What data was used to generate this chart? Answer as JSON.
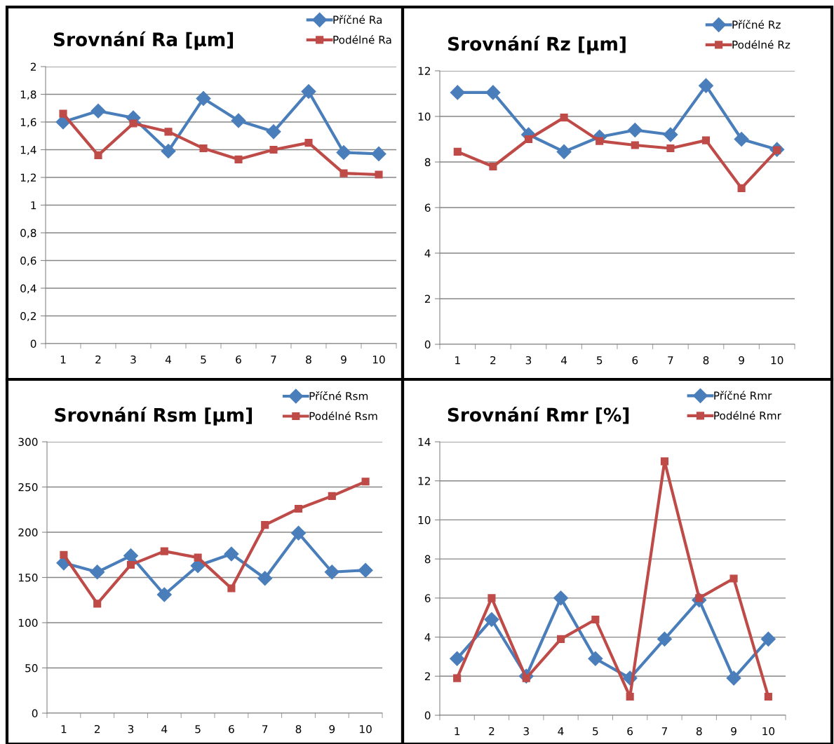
{
  "chart_data": [
    {
      "type": "line",
      "title": "Srovnání Ra [µm]",
      "categories": [
        "1",
        "2",
        "3",
        "4",
        "5",
        "6",
        "7",
        "8",
        "9",
        "10"
      ],
      "series": [
        {
          "name": "Příčné Ra",
          "color": "#4a7ebb",
          "marker": "diamond",
          "values": [
            1.6,
            1.68,
            1.63,
            1.39,
            1.77,
            1.61,
            1.53,
            1.82,
            1.38,
            1.37
          ]
        },
        {
          "name": "Podélné Ra",
          "color": "#be4b48",
          "marker": "square",
          "values": [
            1.66,
            1.36,
            1.59,
            1.53,
            1.41,
            1.33,
            1.4,
            1.45,
            1.23,
            1.22
          ]
        }
      ],
      "ylim": [
        0,
        2
      ],
      "yticks": [
        0,
        {
          "value": 0.2,
          "label": "0,2"
        },
        {
          "value": 0.4,
          "label": "0,4"
        },
        {
          "value": 0.6,
          "label": "0,6"
        },
        {
          "value": 0.8,
          "label": "0,8"
        },
        1,
        {
          "value": 1.2,
          "label": "1,2"
        },
        {
          "value": 1.4,
          "label": "1,4"
        },
        {
          "value": 1.6,
          "label": "1,6"
        },
        {
          "value": 1.8,
          "label": "1,8"
        },
        2
      ],
      "grid": "y",
      "legend": "top right"
    },
    {
      "type": "line",
      "title": "Srovnání Rz [µm]",
      "categories": [
        "1",
        "2",
        "3",
        "4",
        "5",
        "6",
        "7",
        "8",
        "9",
        "10"
      ],
      "series": [
        {
          "name": "Příčné Rz",
          "color": "#4a7ebb",
          "marker": "diamond",
          "values": [
            11.05,
            11.05,
            9.2,
            8.45,
            9.1,
            9.4,
            9.2,
            11.35,
            9.0,
            8.55
          ]
        },
        {
          "name": "Podélné Rz",
          "color": "#be4b48",
          "marker": "square",
          "values": [
            8.45,
            7.8,
            9.0,
            9.95,
            8.92,
            8.74,
            8.6,
            8.95,
            6.85,
            8.52
          ]
        }
      ],
      "ylim": [
        0,
        12
      ],
      "yticks": [
        0,
        2,
        4,
        6,
        8,
        10,
        12
      ],
      "grid": "y",
      "legend": "top right"
    },
    {
      "type": "line",
      "title": "Srovnání Rsm [µm]",
      "categories": [
        "1",
        "2",
        "3",
        "4",
        "5",
        "6",
        "7",
        "8",
        "9",
        "10"
      ],
      "series": [
        {
          "name": "Příčné Rsm",
          "color": "#4a7ebb",
          "marker": "diamond",
          "values": [
            166,
            156,
            174,
            131,
            163,
            176,
            149,
            199,
            156,
            158
          ]
        },
        {
          "name": "Podélné Rsm",
          "color": "#be4b48",
          "marker": "square",
          "values": [
            175,
            121,
            164,
            179,
            172,
            138,
            208,
            226,
            240,
            256
          ]
        }
      ],
      "ylim": [
        0,
        300
      ],
      "yticks": [
        0,
        50,
        100,
        150,
        200,
        250,
        300
      ],
      "grid": "y",
      "legend": "top right"
    },
    {
      "type": "line",
      "title": "Srovnání Rmr [%]",
      "categories": [
        "1",
        "2",
        "3",
        "4",
        "5",
        "6",
        "7",
        "8",
        "9",
        "10"
      ],
      "series": [
        {
          "name": "Příčné Rmr",
          "color": "#4a7ebb",
          "marker": "diamond",
          "values": [
            2.9,
            4.9,
            2.0,
            6.0,
            2.9,
            1.9,
            3.9,
            5.9,
            1.9,
            3.9
          ]
        },
        {
          "name": "Podélné Rmr",
          "color": "#be4b48",
          "marker": "square",
          "values": [
            1.9,
            6.0,
            1.9,
            3.9,
            4.9,
            0.95,
            13.0,
            6.0,
            7.0,
            0.95
          ]
        }
      ],
      "ylim": [
        0,
        14
      ],
      "yticks": [
        0,
        2,
        4,
        6,
        8,
        10,
        12,
        14
      ],
      "grid": "y",
      "legend": "top right"
    }
  ]
}
